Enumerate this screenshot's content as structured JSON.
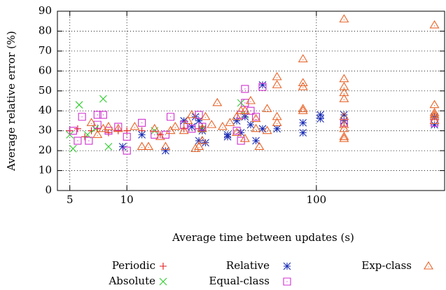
{
  "chart_data": {
    "type": "scatter",
    "x_label": "Average time between updates (s)",
    "y_label": "Average relative error (%)",
    "xlog": true,
    "grid": true,
    "legend": "bottom",
    "xlim": [
      4.3,
      475
    ],
    "ylim": [
      0,
      90
    ],
    "xticks": [
      5,
      10,
      100
    ],
    "yticks": [
      0,
      10,
      20,
      30,
      40,
      50,
      60,
      70,
      80,
      90
    ],
    "series": [
      {
        "name": "Periodic",
        "color": "#e41a1c",
        "marker": "plus",
        "x": [
          5,
          5.5,
          6,
          6.5,
          7,
          8,
          9,
          10,
          12,
          15,
          20,
          24,
          25,
          25,
          34
        ],
        "values": [
          30,
          31,
          27,
          30,
          31,
          29,
          30,
          30,
          30,
          28,
          31,
          31,
          32,
          30,
          27
        ]
      },
      {
        "name": "Absolute",
        "color": "#2ecc2e",
        "marker": "cross",
        "x": [
          5,
          5.2,
          5.6,
          6.2,
          6.8,
          7.5,
          8,
          14,
          25,
          40,
          42
        ],
        "values": [
          28,
          21,
          43,
          28,
          31,
          46,
          22,
          30,
          31,
          44,
          38
        ]
      },
      {
        "name": "Relative",
        "color": "#1c2fb5",
        "marker": "star",
        "x": [
          9.5,
          12,
          16,
          20,
          22,
          23,
          24,
          24,
          25,
          26,
          34,
          34,
          38,
          40,
          42,
          45,
          48,
          52,
          52,
          62,
          85,
          85,
          105,
          105,
          140,
          140,
          420,
          420
        ],
        "values": [
          22,
          28,
          20,
          35,
          32,
          37,
          35,
          25,
          30,
          24,
          28,
          27,
          35,
          29,
          37,
          33,
          25,
          53,
          31,
          31,
          34,
          29,
          36,
          38,
          38,
          35,
          37,
          33
        ]
      },
      {
        "name": "Equal-class",
        "color": "#d030d0",
        "marker": "square",
        "x": [
          5.2,
          5.5,
          5.8,
          6.3,
          7,
          7,
          7.5,
          8,
          9,
          10,
          10,
          12,
          14,
          16,
          17,
          20,
          22,
          24,
          25,
          38,
          40,
          40,
          42,
          42,
          45,
          48,
          52,
          140,
          420
        ],
        "values": [
          30,
          25,
          37,
          25,
          38,
          33,
          38,
          30,
          32,
          20,
          27,
          34,
          28,
          28,
          37,
          33,
          31,
          38,
          32,
          30,
          38,
          25,
          51,
          44,
          40,
          37,
          52,
          34,
          34
        ]
      },
      {
        "name": "Exp-class",
        "color": "#e8642a",
        "marker": "triangle",
        "x": [
          6.5,
          7,
          7.5,
          8,
          9,
          11,
          12,
          13,
          14,
          15,
          16,
          17,
          18,
          20,
          21,
          22,
          23,
          24,
          25,
          25,
          26,
          28,
          30,
          32,
          35,
          38,
          38,
          40,
          42,
          42,
          45,
          48,
          48,
          50,
          55,
          55,
          62,
          62,
          62,
          62,
          85,
          85,
          85,
          85,
          85,
          140,
          140,
          140,
          140,
          140,
          140,
          140,
          140,
          140,
          140,
          420,
          420,
          420,
          420,
          420,
          420
        ],
        "values": [
          34,
          28,
          31,
          32,
          31,
          32,
          22,
          22,
          31,
          27,
          22,
          30,
          32,
          30,
          35,
          38,
          21,
          22,
          25,
          31,
          37,
          33,
          44,
          32,
          34,
          37,
          29,
          40,
          40,
          26,
          45,
          31,
          36,
          22,
          30,
          41,
          57,
          53,
          37,
          34,
          66,
          54,
          52,
          41,
          40,
          86,
          56,
          52,
          49,
          46,
          37,
          33,
          31,
          27,
          26,
          83,
          43,
          39,
          38,
          37,
          35
        ]
      }
    ]
  }
}
